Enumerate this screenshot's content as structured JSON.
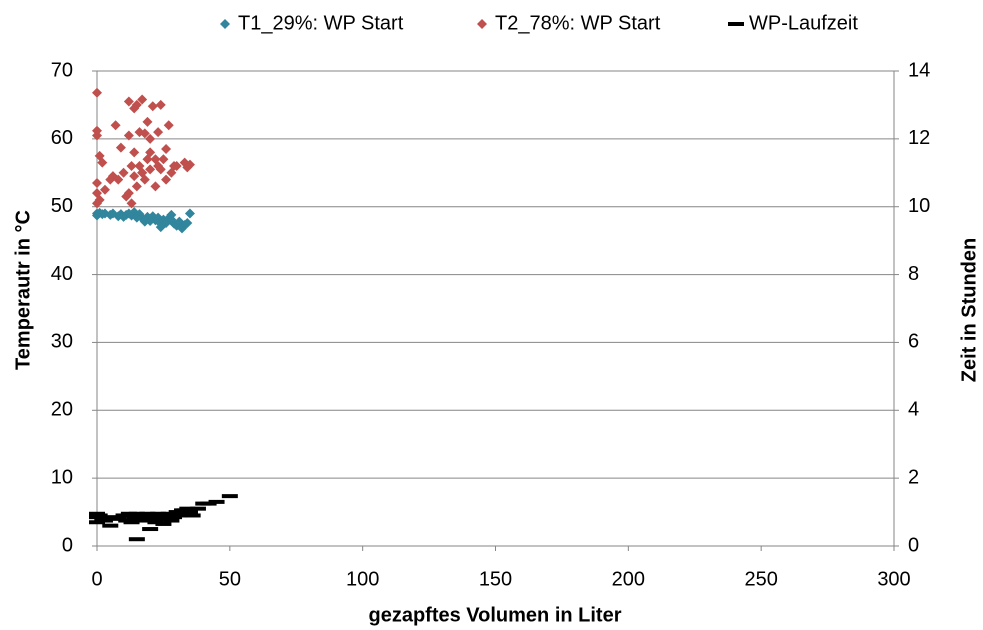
{
  "chart_data": {
    "type": "scatter",
    "x_label": "gezapftes Volumen in Liter",
    "y_label": "Temperautr in °C",
    "y2_label": "Zeit in Stunden",
    "xlim": [
      0,
      300
    ],
    "xticks": [
      0,
      50,
      100,
      150,
      200,
      250,
      300
    ],
    "ylim": [
      0,
      70
    ],
    "yticks": [
      0,
      10,
      20,
      30,
      40,
      50,
      60,
      70
    ],
    "y2lim": [
      0,
      14
    ],
    "y2ticks": [
      0,
      2,
      4,
      6,
      8,
      10,
      12,
      14
    ],
    "grid": true,
    "legend": "top",
    "series": [
      {
        "name": "T1_29%: WP Start",
        "color": "#31859c",
        "marker": "diamond",
        "x": [
          0,
          0,
          1,
          2,
          3,
          5,
          6,
          8,
          9,
          10,
          11,
          12,
          13,
          14,
          15,
          16,
          17,
          18,
          19,
          20,
          21,
          22,
          23,
          24,
          25,
          26,
          27,
          28,
          29,
          30,
          31,
          32,
          33,
          34,
          35,
          15,
          18,
          20,
          24,
          28
        ],
        "values": [
          49,
          48.7,
          49.1,
          48.9,
          49,
          48.8,
          49,
          48.6,
          48.9,
          48.5,
          48.8,
          49,
          48.7,
          49.2,
          48.6,
          48.9,
          48.3,
          47.8,
          48.5,
          48.2,
          48.6,
          48,
          48.4,
          47,
          48.1,
          47.6,
          48.3,
          48.8,
          47.5,
          47.2,
          47.8,
          46.8,
          47.3,
          47.6,
          49,
          48.4,
          48,
          47.9,
          47.5,
          48.1
        ]
      },
      {
        "name": "T2_78%: WP Start",
        "color": "#c0504d",
        "marker": "diamond",
        "x": [
          0,
          0,
          0,
          0,
          0,
          0,
          1,
          1,
          2,
          3,
          5,
          6,
          7,
          8,
          9,
          10,
          11,
          12,
          12,
          13,
          13,
          14,
          14,
          15,
          15,
          16,
          16,
          17,
          17,
          18,
          18,
          19,
          19,
          20,
          20,
          21,
          22,
          22,
          23,
          24,
          24,
          25,
          26,
          27,
          28,
          29,
          30,
          33,
          34,
          35,
          12,
          14,
          17,
          20,
          23,
          26
        ],
        "values": [
          66.8,
          61.2,
          60.5,
          53.5,
          52,
          50.5,
          57.5,
          51,
          56.5,
          52.5,
          54,
          54.5,
          62,
          54,
          58.7,
          55,
          51.5,
          65.5,
          60.5,
          56,
          50.5,
          64.5,
          58,
          65,
          53,
          61,
          56,
          65.8,
          55,
          60.8,
          54,
          62.5,
          57,
          60,
          55.5,
          64.8,
          57,
          53,
          61,
          65,
          55.5,
          57,
          58.5,
          62,
          55,
          56,
          56,
          56.5,
          55.8,
          56.2,
          52,
          54.5,
          55,
          58,
          56,
          54
        ]
      },
      {
        "name": "WP-Laufzeit",
        "color": "#000000",
        "marker": "dash",
        "axis": "y2",
        "x": [
          0,
          0,
          0,
          1,
          2,
          3,
          5,
          6,
          8,
          10,
          11,
          12,
          13,
          14,
          15,
          16,
          17,
          18,
          19,
          20,
          21,
          22,
          23,
          24,
          25,
          26,
          27,
          28,
          29,
          30,
          31,
          32,
          33,
          34,
          35,
          36,
          38,
          40,
          42,
          45,
          50,
          15,
          20,
          25
        ],
        "values": [
          0.95,
          0.85,
          0.7,
          0.9,
          0.8,
          0.75,
          0.6,
          0.85,
          0.8,
          0.9,
          0.75,
          0.95,
          0.7,
          0.8,
          0.95,
          0.9,
          0.85,
          0.75,
          0.95,
          0.9,
          0.8,
          0.7,
          0.95,
          0.85,
          0.9,
          0.8,
          0.95,
          0.75,
          0.85,
          1.0,
          0.9,
          1.05,
          1.05,
          1.1,
          1.0,
          0.9,
          1.1,
          1.25,
          1.25,
          1.3,
          1.47,
          0.2,
          0.5,
          0.65
        ]
      }
    ]
  }
}
